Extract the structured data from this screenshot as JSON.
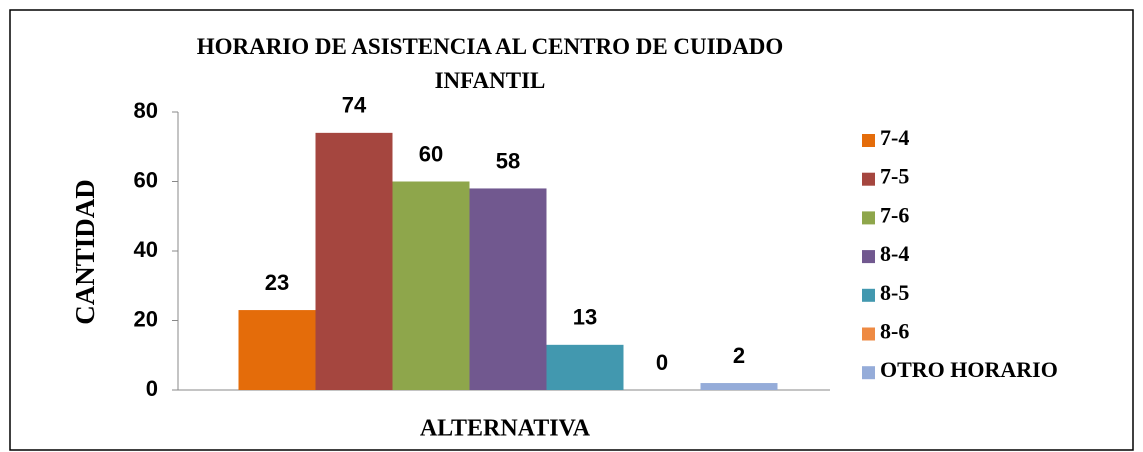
{
  "chart_data": {
    "type": "bar",
    "title": "HORARIO DE ASISTENCIA AL CENTRO DE CUIDADO INFANTIL",
    "x_label": "ALTERNATIVA",
    "y_label": "CANTIDAD",
    "categories": [
      null
    ],
    "series": [
      {
        "name": "7-4",
        "color": "#e46c0a",
        "values": [
          23
        ]
      },
      {
        "name": "7-5",
        "color": "#a5463f",
        "values": [
          74
        ]
      },
      {
        "name": "7-6",
        "color": "#8ea64b",
        "values": [
          60
        ]
      },
      {
        "name": "8-4",
        "color": "#71588f",
        "values": [
          58
        ]
      },
      {
        "name": "8-5",
        "color": "#4298af",
        "values": [
          13
        ]
      },
      {
        "name": "8-6",
        "color": "#ee8a43",
        "values": [
          0
        ]
      },
      {
        "name": "OTRO HORARIO",
        "color": "#95acd9",
        "values": [
          2
        ]
      }
    ],
    "ylim": [
      0,
      80
    ],
    "yticks": [
      0,
      20,
      40,
      60,
      80
    ],
    "grid": false,
    "legend": "right"
  }
}
